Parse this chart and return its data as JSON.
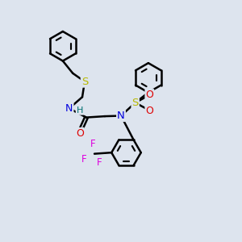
{
  "bg_color": "#dde4ee",
  "bond_color": "#000000",
  "bond_width": 1.8,
  "atom_colors": {
    "S": "#b8b800",
    "N": "#0000dd",
    "O": "#dd0000",
    "F": "#dd00dd",
    "H": "#007070",
    "C": "#000000"
  },
  "font_size": 8.5,
  "fig_w": 3.0,
  "fig_h": 3.0,
  "dpi": 100,
  "xlim": [
    0,
    10
  ],
  "ylim": [
    0,
    10
  ]
}
